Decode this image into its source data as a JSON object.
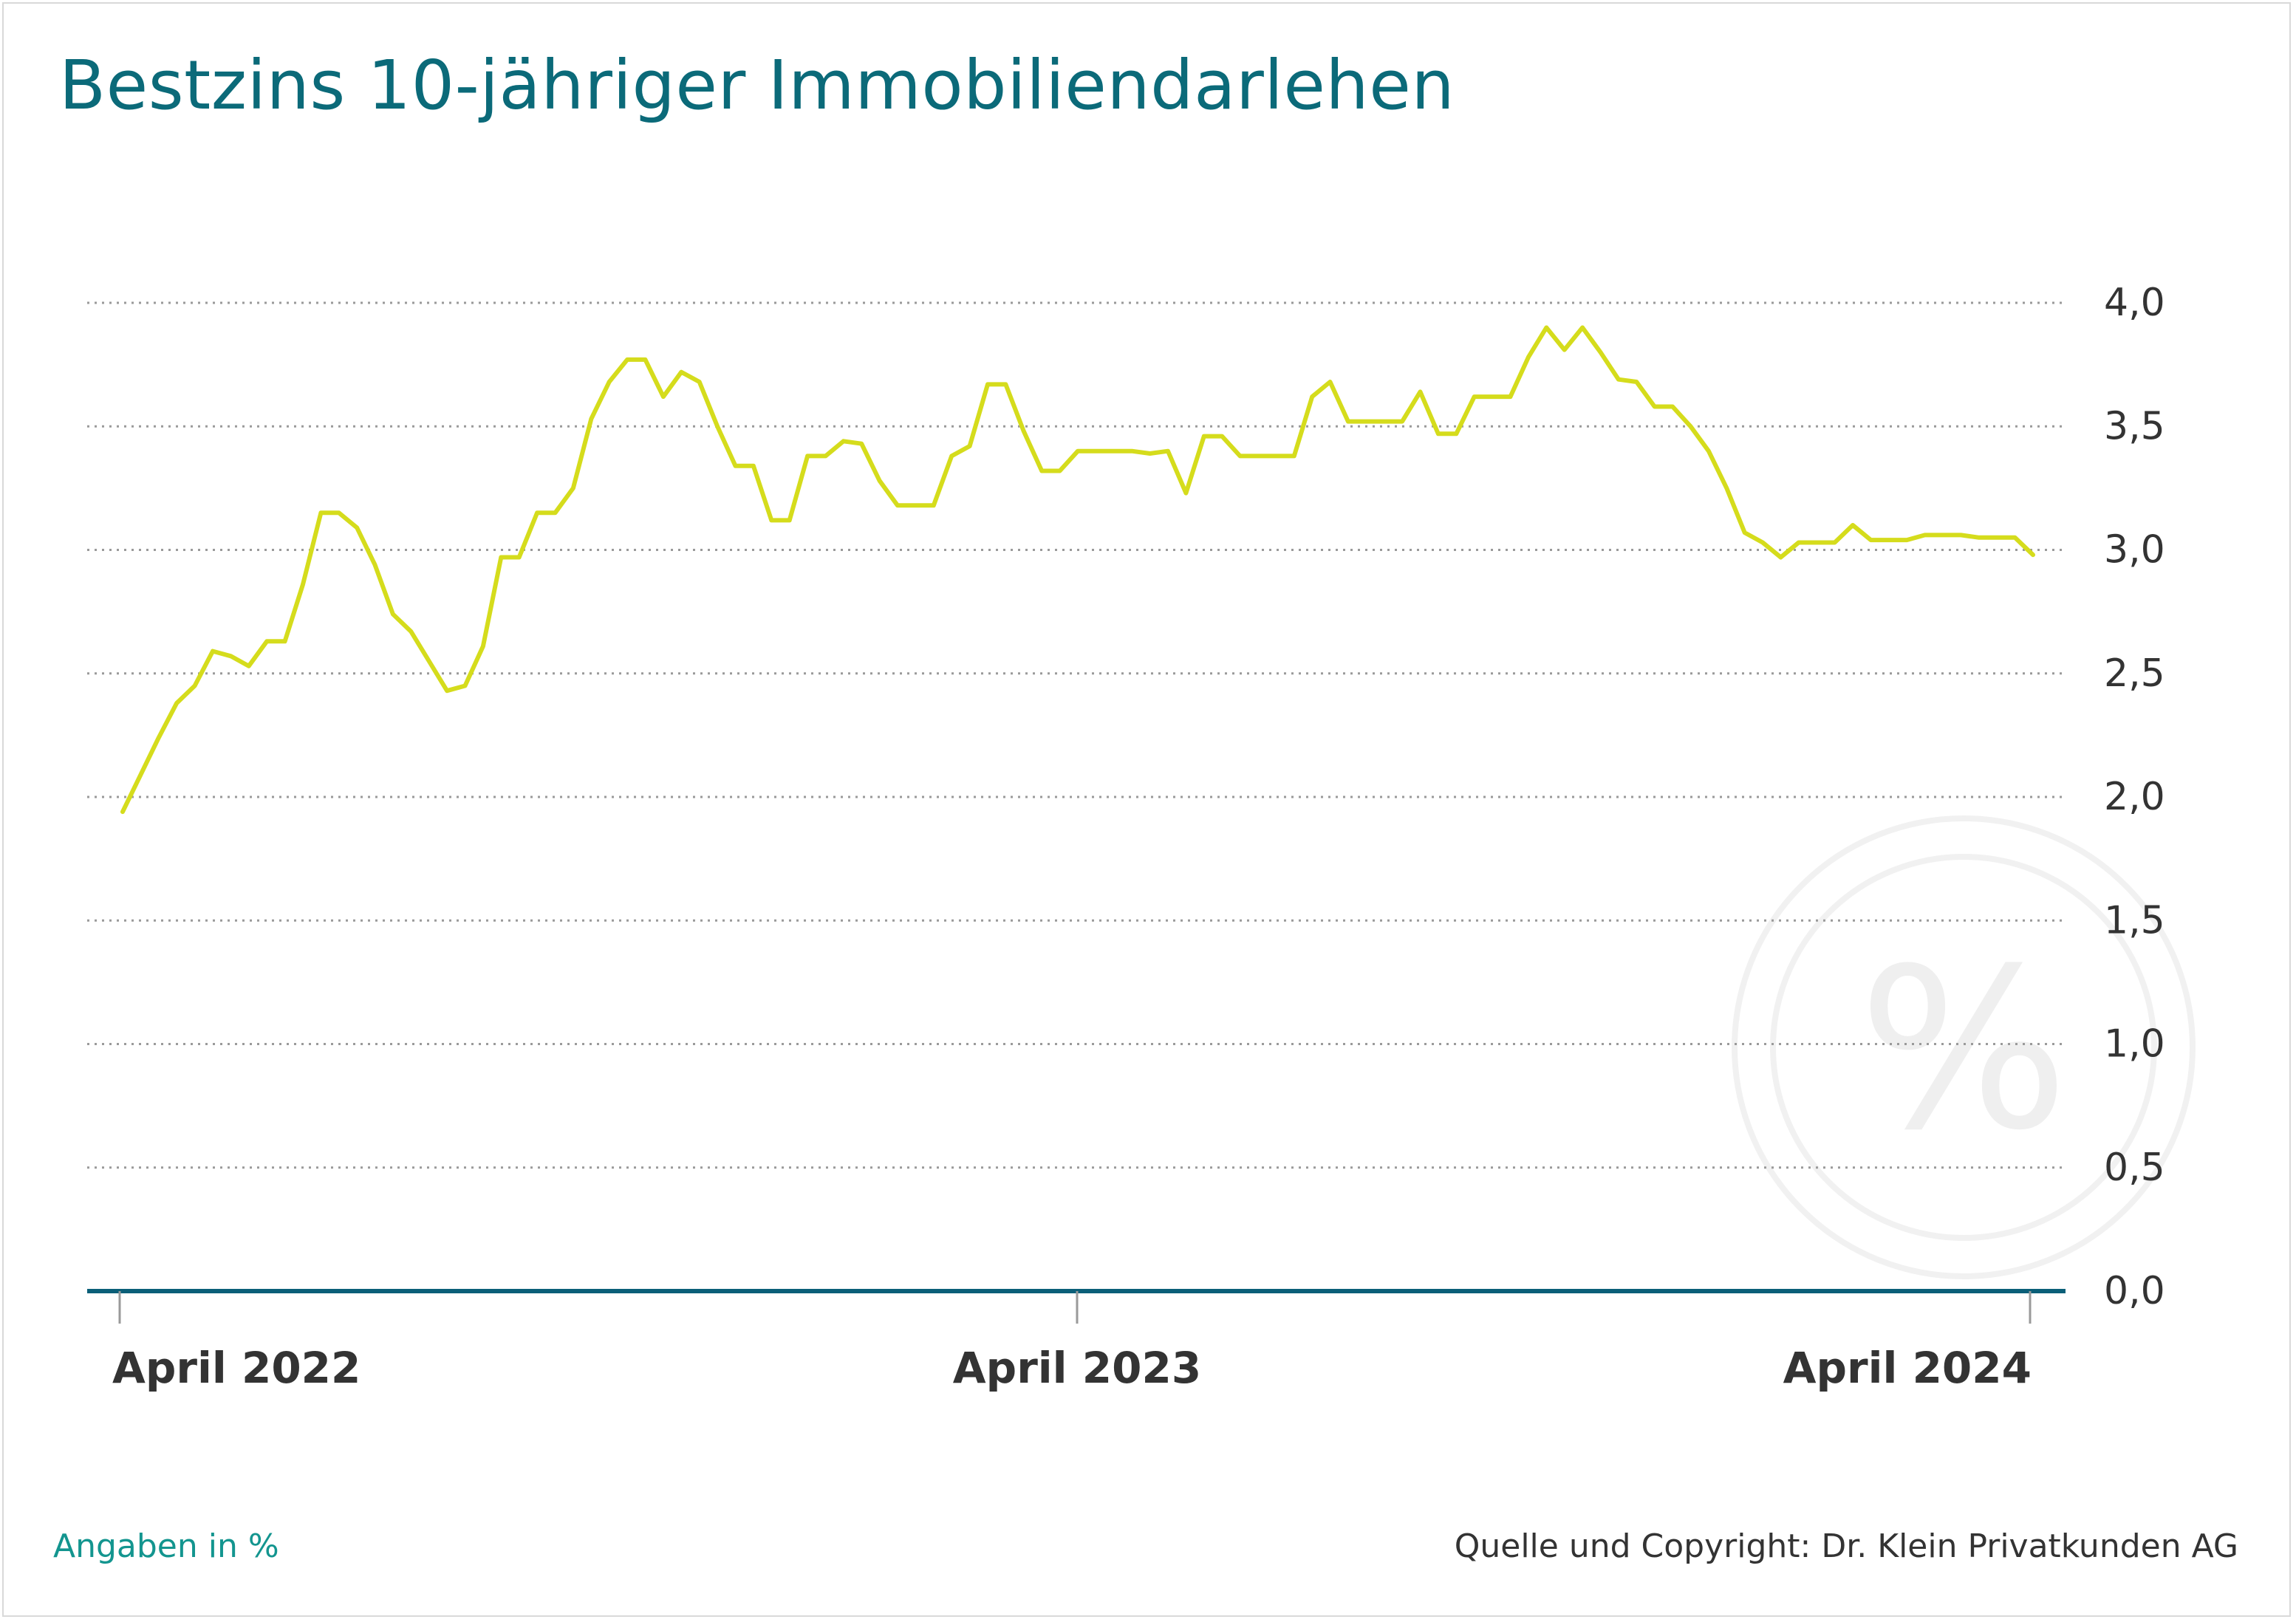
{
  "title": "Bestzins 10-jähriger Immobiliendarlehen",
  "footer": {
    "unit_note": "Angaben in %",
    "source": "Quelle und Copyright: Dr. Klein Privatkunden AG"
  },
  "watermark": {
    "symbol": "%"
  },
  "colors": {
    "title": "#0b6a79",
    "line": "#d5dc1c",
    "axis": "#0b5f78",
    "grid": "#9a9a9a",
    "unit_note": "#13958f",
    "text": "#333333"
  },
  "chart_data": {
    "type": "line",
    "title": "Bestzins 10-jähriger Immobiliendarlehen",
    "xlabel": "",
    "ylabel": "",
    "ylim": [
      0,
      4
    ],
    "grid": true,
    "y_ticks": [
      "0,0",
      "0,5",
      "1,0",
      "1,5",
      "2,0",
      "2,5",
      "3,0",
      "3,5",
      "4,0"
    ],
    "x_ticks": [
      "April 2022",
      "April 2023",
      "April 2024"
    ],
    "series": [
      {
        "values": [
          1.94,
          2.09,
          2.24,
          2.38,
          2.45,
          2.59,
          2.57,
          2.53,
          2.63,
          2.63,
          2.86,
          3.15,
          3.15,
          3.09,
          2.94,
          2.74,
          2.67,
          2.55,
          2.43,
          2.45,
          2.61,
          2.97,
          2.97,
          3.15,
          3.15,
          3.25,
          3.53,
          3.68,
          3.77,
          3.77,
          3.62,
          3.72,
          3.68,
          3.5,
          3.34,
          3.34,
          3.12,
          3.12,
          3.38,
          3.38,
          3.44,
          3.43,
          3.28,
          3.18,
          3.18,
          3.18,
          3.38,
          3.42,
          3.67,
          3.67,
          3.48,
          3.32,
          3.32,
          3.4,
          3.4,
          3.4,
          3.4,
          3.39,
          3.4,
          3.23,
          3.46,
          3.46,
          3.38,
          3.38,
          3.38,
          3.38,
          3.62,
          3.68,
          3.52,
          3.52,
          3.52,
          3.52,
          3.64,
          3.47,
          3.47,
          3.62,
          3.62,
          3.62,
          3.78,
          3.9,
          3.81,
          3.9,
          3.8,
          3.69,
          3.68,
          3.58,
          3.58,
          3.5,
          3.4,
          3.25,
          3.07,
          3.03,
          2.97,
          3.03,
          3.03,
          3.03,
          3.1,
          3.04,
          3.04,
          3.04,
          3.06,
          3.06,
          3.06,
          3.05,
          3.05,
          3.05,
          2.98
        ]
      }
    ]
  }
}
